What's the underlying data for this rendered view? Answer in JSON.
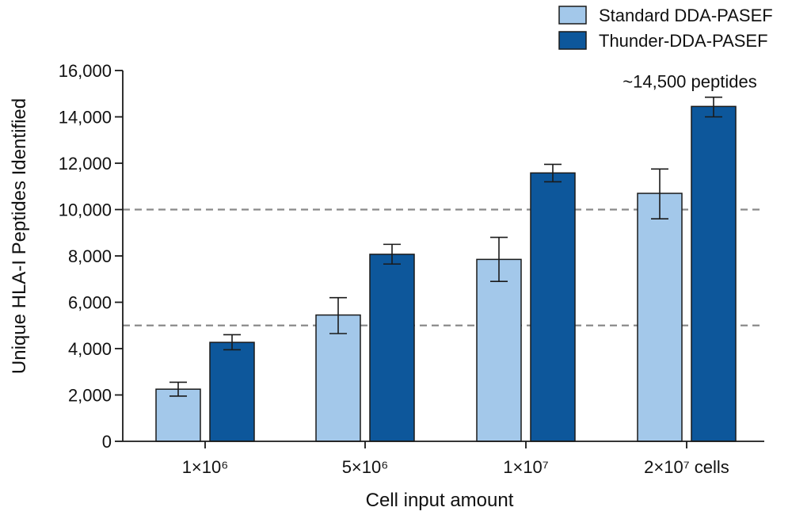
{
  "chart_data": {
    "type": "bar",
    "categories": [
      "1×10⁶",
      "5×10⁶",
      "1×10⁷",
      "2×10⁷ cells"
    ],
    "series": [
      {
        "name": "Standard DDA-PASEF",
        "color": "#a3c8ea",
        "values": [
          2250,
          5450,
          7850,
          10700
        ],
        "error_low": [
          1950,
          4650,
          6900,
          9600
        ],
        "error_high": [
          2550,
          6200,
          8800,
          11750
        ]
      },
      {
        "name": "Thunder-DDA-PASEF",
        "color": "#0d579b",
        "values": [
          4270,
          8070,
          11580,
          14450
        ],
        "error_low": [
          3950,
          7650,
          11200,
          14000
        ],
        "error_high": [
          4600,
          8500,
          11950,
          14850
        ]
      }
    ],
    "xlabel": "Cell input amount",
    "ylabel": "Unique HLA-I Peptides Identified",
    "ylim": [
      0,
      16000
    ],
    "yticks": [
      0,
      2000,
      4000,
      6000,
      8000,
      10000,
      12000,
      14000,
      16000
    ],
    "ytick_labels": [
      "0",
      "2,000",
      "4,000",
      "6,000",
      "8,000",
      "10,000",
      "12,000",
      "14,000",
      "16,000"
    ],
    "reference_lines": [
      5000,
      10000
    ],
    "grid": false,
    "legend_position": "top-right",
    "annotations": [
      {
        "text": "~14,500 peptides",
        "category_index": 3,
        "series_index": 1
      }
    ]
  }
}
